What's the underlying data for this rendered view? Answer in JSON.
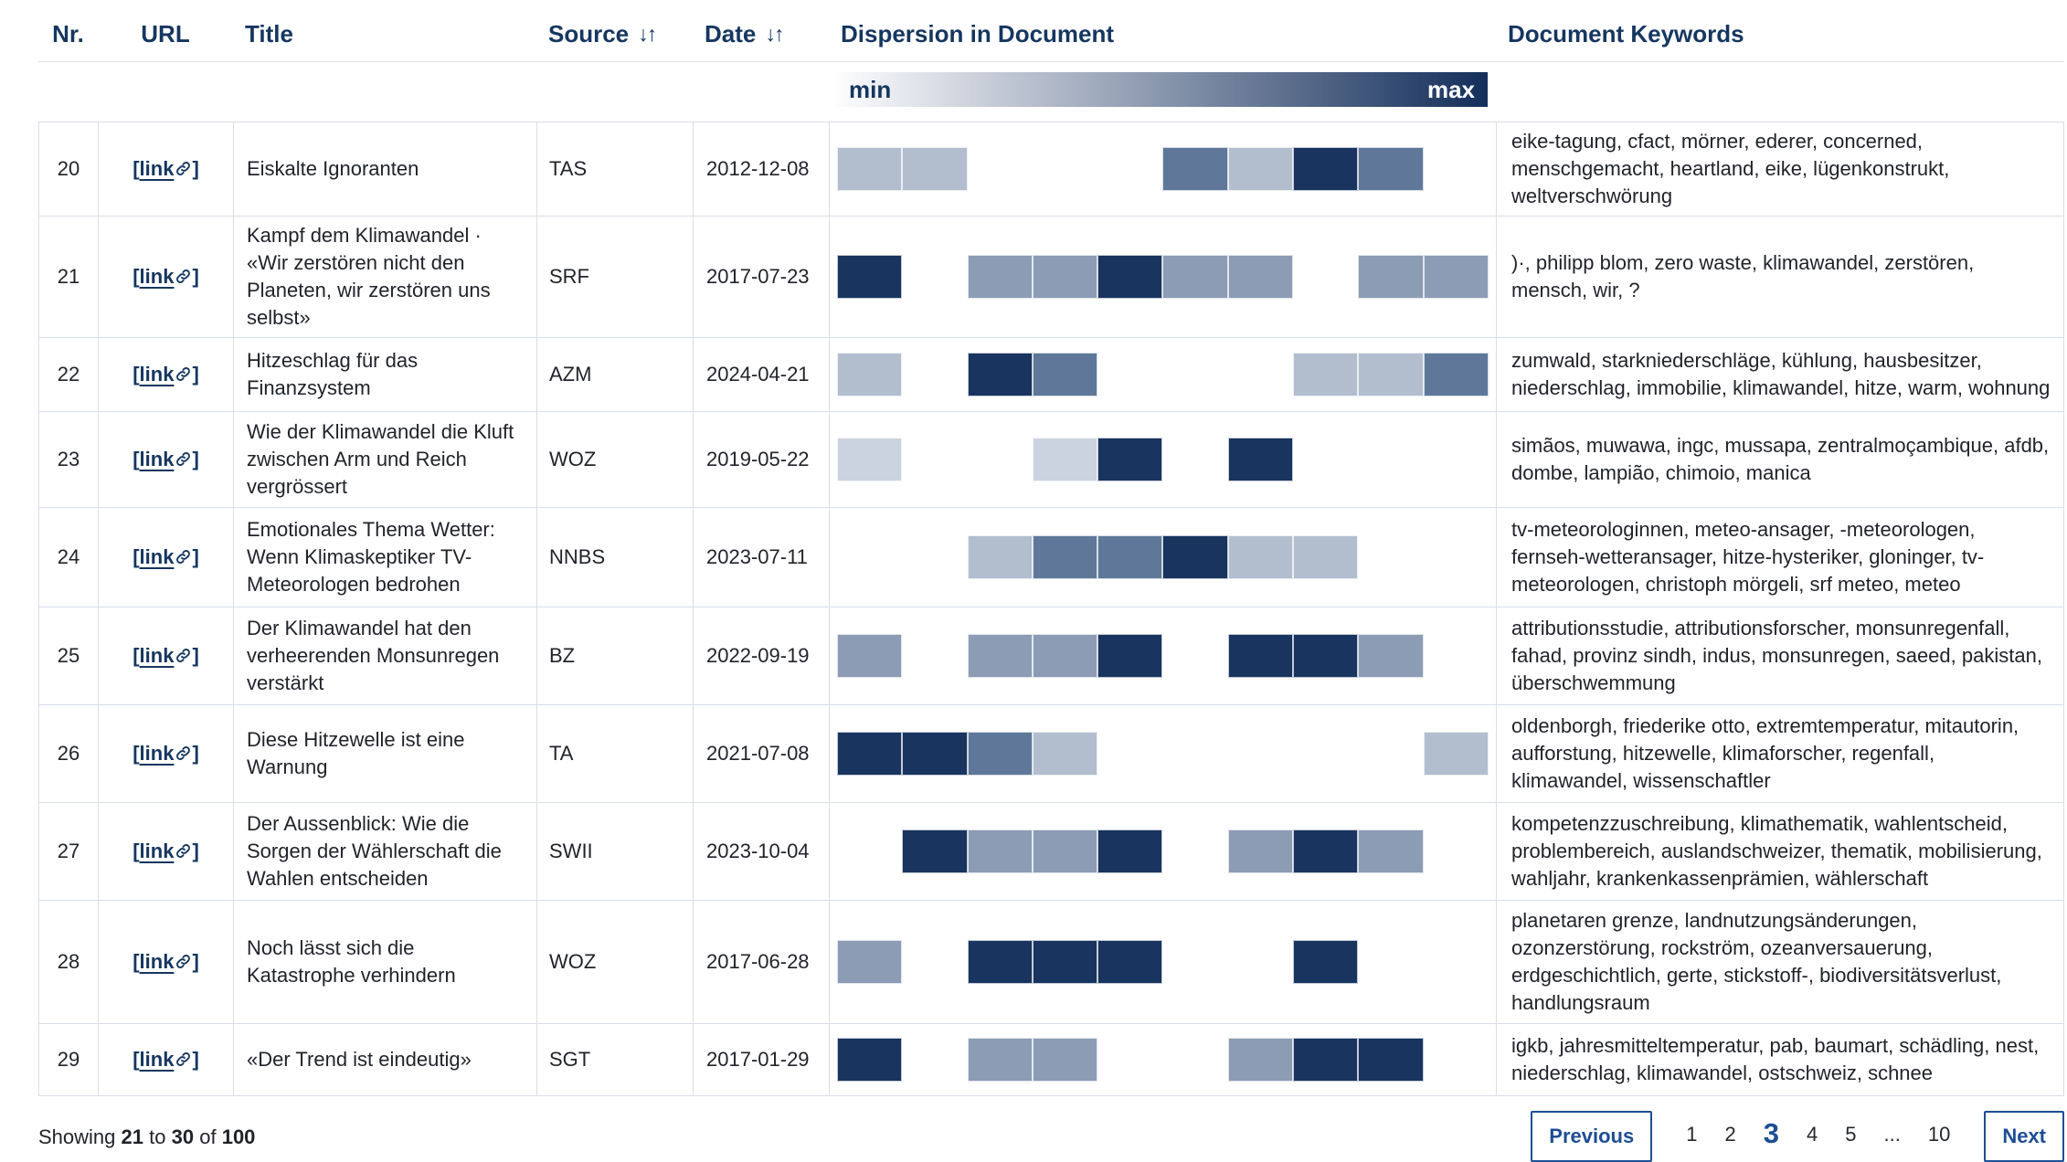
{
  "colors": {
    "header_text": "#15365f",
    "link": "#15365f",
    "body_text": "#1f2329",
    "border": "#d9dfe7",
    "accent": "#1d4e94",
    "gradient_start": "#fdfdfe",
    "gradient_end": "#142f5b",
    "segments": {
      "1": "#cbd3e0",
      "2": "#b2bece",
      "3": "#8c9cb4",
      "4": "#5f7899",
      "5": "#18345f"
    }
  },
  "icons": {
    "sort_glyph": "↓↑",
    "link_icon": "chain-link"
  },
  "table": {
    "columns": [
      {
        "label": "Nr.",
        "sortable": false
      },
      {
        "label": "URL",
        "sortable": false
      },
      {
        "label": "Title",
        "sortable": false
      },
      {
        "label": "Source",
        "sortable": true
      },
      {
        "label": "Date",
        "sortable": true
      },
      {
        "label": "Dispersion in Document",
        "sortable": false
      },
      {
        "label": "Document Keywords",
        "sortable": false
      }
    ],
    "legend": {
      "min": "min",
      "max": "max"
    },
    "url_cell": {
      "prefix": "[",
      "label": "link",
      "suffix": "]"
    },
    "rows": [
      {
        "nr": "20",
        "title": "Eiskalte Ignoranten",
        "source": "TAS",
        "date": "2012-12-08",
        "dispersion": [
          2,
          2,
          0,
          0,
          0,
          4,
          2,
          5,
          4,
          0
        ],
        "keywords": "eike-tagung, cfact, mörner, ederer, concerned, menschgemacht, heartland, eike, lügenkonstrukt, weltverschwörung"
      },
      {
        "nr": "21",
        "title": "Kampf dem Klimawandel · «Wir zerstören nicht den Planeten, wir zerstören uns selbst»",
        "source": "SRF",
        "date": "2017-07-23",
        "dispersion": [
          5,
          0,
          3,
          3,
          5,
          3,
          3,
          0,
          3,
          3
        ],
        "keywords": ")·, philipp blom, zero waste, klimawandel, zerstören, mensch, wir, ?"
      },
      {
        "nr": "22",
        "title": "Hitzeschlag für das Finanzsystem",
        "source": "AZM",
        "date": "2024-04-21",
        "dispersion": [
          2,
          0,
          5,
          4,
          0,
          0,
          0,
          2,
          2,
          4
        ],
        "keywords": "zumwald, starkniederschläge, kühlung, hausbesitzer, niederschlag, immobilie, klimawandel, hitze, warm, wohnung"
      },
      {
        "nr": "23",
        "title": "Wie der Klimawandel die Kluft zwischen Arm und Reich vergrössert",
        "source": "WOZ",
        "date": "2019-05-22",
        "dispersion": [
          1,
          0,
          0,
          1,
          5,
          0,
          5,
          0,
          0,
          0
        ],
        "keywords": "simãos, muwawa, ingc, mussapa, zentralmoçambique, afdb, dombe, lampião, chimoio, manica"
      },
      {
        "nr": "24",
        "title": "Emotionales Thema Wetter: Wenn Klimaskeptiker TV-Meteorologen bedrohen",
        "source": "NNBS",
        "date": "2023-07-11",
        "dispersion": [
          0,
          0,
          2,
          4,
          4,
          5,
          2,
          2,
          0,
          0
        ],
        "keywords": "tv-meteorologinnen, meteo-ansager, -meteorologen, fernseh-wetteransager, hitze-hysteriker, gloninger, tv-meteorologen, christoph mörgeli, srf meteo, meteo"
      },
      {
        "nr": "25",
        "title": "Der Klimawandel hat den verheerenden Monsunregen verstärkt",
        "source": "BZ",
        "date": "2022-09-19",
        "dispersion": [
          3,
          0,
          3,
          3,
          5,
          0,
          5,
          5,
          3,
          0
        ],
        "keywords": "attributionsstudie, attributionsforscher, monsunregenfall, fahad, provinz sindh, indus, monsunregen, saeed, pakistan, überschwemmung"
      },
      {
        "nr": "26",
        "title": "Diese Hitzewelle ist eine Warnung",
        "source": "TA",
        "date": "2021-07-08",
        "dispersion": [
          5,
          5,
          4,
          2,
          0,
          0,
          0,
          0,
          0,
          2
        ],
        "keywords": "oldenborgh, friederike otto, extremtemperatur, mitautorin, aufforstung, hitzewelle, klimaforscher, regenfall, klimawandel, wissenschaftler"
      },
      {
        "nr": "27",
        "title": "Der Aussenblick: Wie die Sorgen der Wählerschaft die Wahlen entscheiden",
        "source": "SWII",
        "date": "2023-10-04",
        "dispersion": [
          0,
          5,
          3,
          3,
          5,
          0,
          3,
          5,
          3,
          0
        ],
        "keywords": "kompetenzzuschreibung, klimathematik, wahlentscheid, problembereich, auslandschweizer, thematik, mobilisierung, wahljahr, krankenkassenprämien, wählerschaft"
      },
      {
        "nr": "28",
        "title": "Noch lässt sich die Katastrophe verhindern",
        "source": "WOZ",
        "date": "2017-06-28",
        "dispersion": [
          3,
          0,
          5,
          5,
          5,
          0,
          0,
          5,
          0,
          0
        ],
        "keywords": "planetaren grenze, landnutzungsänderungen, ozonzerstörung, rockström, ozeanversauerung, erdgeschichtlich, gerte, stickstoff-, biodiversitätsverlust, handlungsraum"
      },
      {
        "nr": "29",
        "title": "«Der Trend ist eindeutig»",
        "source": "SGT",
        "date": "2017-01-29",
        "dispersion": [
          5,
          0,
          3,
          3,
          0,
          0,
          3,
          5,
          5,
          0
        ],
        "keywords": "igkb, jahresmitteltemperatur, pab, baumart, schädling, nest, niederschlag, klimawandel, ostschweiz, schnee"
      }
    ]
  },
  "footer": {
    "showing": {
      "prefix": "Showing",
      "from": "21",
      "to_word": "to",
      "to": "30",
      "of_word": "of",
      "total": "100"
    },
    "pagination": {
      "previous": "Previous",
      "pages": [
        "1",
        "2",
        "3",
        "4",
        "5",
        "...",
        "10"
      ],
      "current": "3",
      "next": "Next"
    }
  }
}
